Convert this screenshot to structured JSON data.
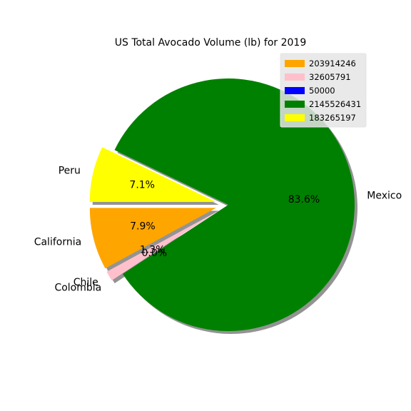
{
  "chart_data": {
    "type": "pie",
    "title": "US Total Avocado Volume (lb) for 2019",
    "categories": [
      "California",
      "Chile",
      "Colombia",
      "Mexico",
      "Peru"
    ],
    "values": [
      203914246,
      32605791,
      50000,
      2145526431,
      183265197
    ],
    "percent_labels": [
      "7.9%",
      "1.3%",
      "0.0%",
      "83.6%",
      "7.1%"
    ],
    "colors": [
      "#ffa500",
      "#ffc0cb",
      "#0000ff",
      "#008000",
      "#ffff00"
    ],
    "explode": [
      0.1,
      0.1,
      0.1,
      0.0,
      0.1
    ],
    "start_angle": 180,
    "shadow": true,
    "legend": {
      "entries": [
        "203914246",
        "32605791",
        "50000",
        "2145526431",
        "183265197"
      ],
      "placement": "top-right"
    }
  }
}
